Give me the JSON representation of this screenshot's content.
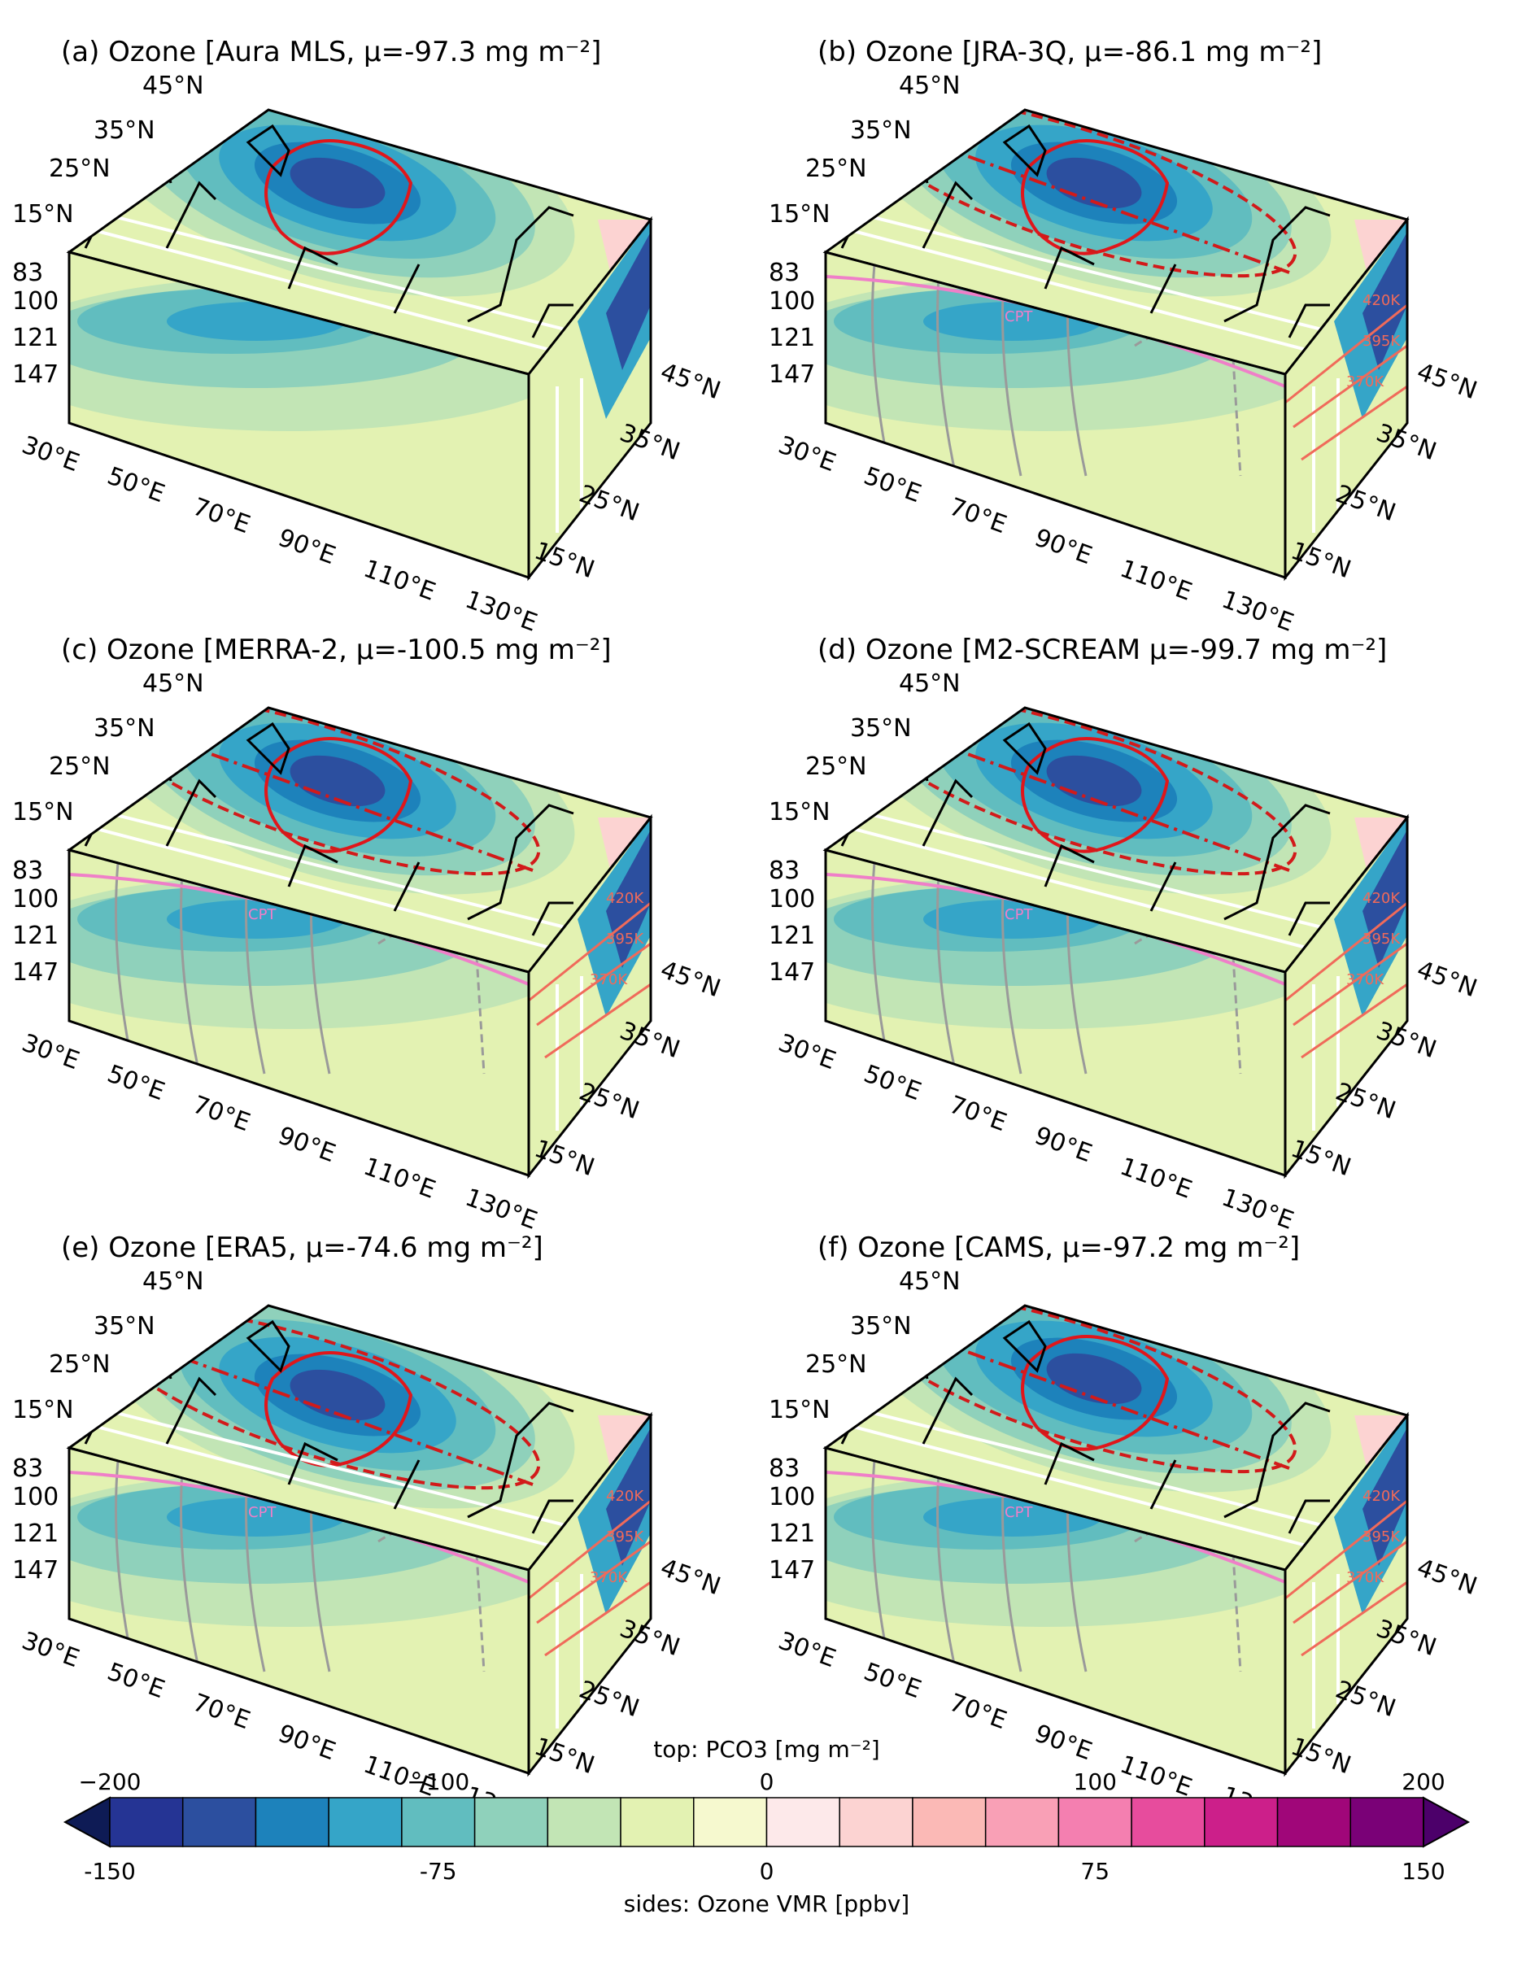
{
  "chart_data": {
    "type": "heatmap",
    "panels": [
      {
        "id": "a",
        "title": "(a) Ozone [Aura MLS, μ=-97.3 mg m⁻²]",
        "mean": -97.3,
        "overlays": false
      },
      {
        "id": "b",
        "title": "(b) Ozone [JRA-3Q, μ=-86.1 mg m⁻²]",
        "mean": -86.1,
        "overlays": true
      },
      {
        "id": "c",
        "title": "(c) Ozone [MERRA-2, μ=-100.5 mg m⁻²]",
        "mean": -100.5,
        "overlays": true
      },
      {
        "id": "d",
        "title": "(d) Ozone [M2-SCREAM μ=-99.7 mg m⁻²]",
        "mean": -99.7,
        "overlays": true
      },
      {
        "id": "e",
        "title": "(e) Ozone [ERA5, μ=-74.6 mg m⁻²]",
        "mean": -74.6,
        "overlays": true
      },
      {
        "id": "f",
        "title": "(f) Ozone [CAMS, μ=-97.2 mg m⁻²]",
        "mean": -97.2,
        "overlays": true
      }
    ],
    "axes": {
      "lon_ticks": [
        "30°E",
        "50°E",
        "70°E",
        "90°E",
        "110°E",
        "130°E"
      ],
      "lat_ticks": [
        "15°N",
        "25°N",
        "35°N",
        "45°N"
      ],
      "pressure_ticks": [
        "83",
        "100",
        "121",
        "147"
      ]
    },
    "annotations": {
      "cpt": "CPT",
      "isentropes": [
        "420K",
        "395K",
        "370K"
      ]
    },
    "colorbar": {
      "top_label": "top: PCO3 [mg m⁻²]",
      "top_ticks": [
        "−200",
        "−100",
        "0",
        "100",
        "200"
      ],
      "bottom_label": "sides: Ozone VMR [ppbv]",
      "bottom_ticks": [
        "-150",
        "-75",
        "0",
        "75",
        "150"
      ],
      "colors": [
        "#0e1b55",
        "#253494",
        "#2c4f9f",
        "#1d82bb",
        "#35a5c8",
        "#61bdbf",
        "#8fd1bb",
        "#c2e5b5",
        "#e3f2b2",
        "#f6f9cf",
        "#fde9ea",
        "#fcd3d2",
        "#fbb9b6",
        "#f9a0b6",
        "#f47fb0",
        "#e74c9d",
        "#cc1f8a",
        "#a00679",
        "#7a0177",
        "#4c006a"
      ],
      "extend": "both"
    }
  }
}
